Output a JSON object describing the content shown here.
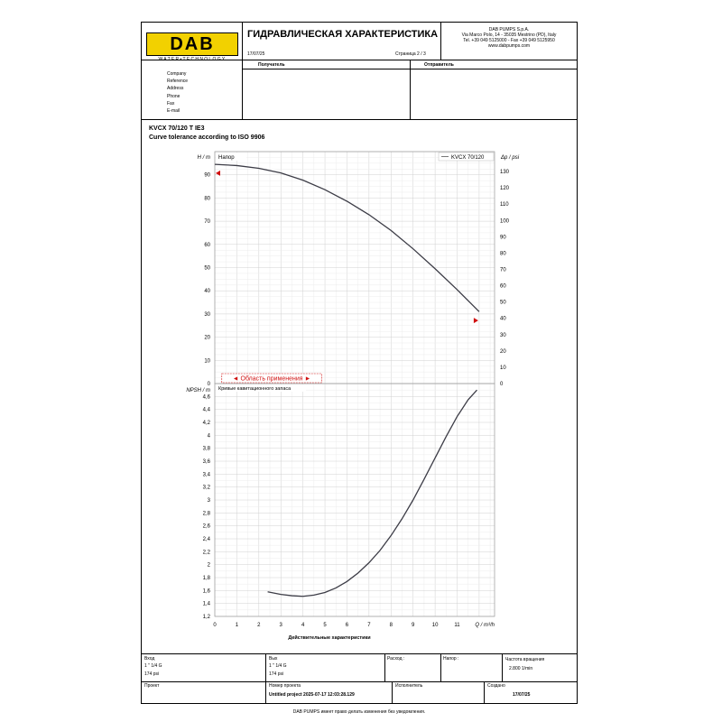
{
  "header": {
    "logo_text": "DAB",
    "logo_sub": "WATER•TECHNOLOGY",
    "title": "ГИДРАВЛИЧЕСКАЯ ХАРАКТЕРИСТИКА",
    "date": "17/07/25",
    "page": "Страница 2 / 3",
    "company": {
      "name": "DAB PUMPS S.p.A.",
      "address": "Via Marco Polo, 14 - 35035 Mestrino (PD), Italy",
      "phone": "Tel. +39 049 5125000 - Fax +39 049 5125950",
      "web": "www.dabpumps.com"
    }
  },
  "info": {
    "recipient_label": "Получатель",
    "sender_label": "Отправитель",
    "fields": [
      "Company",
      "Reference",
      "Address",
      "Phone",
      "Fax",
      "E-mail"
    ]
  },
  "product": {
    "model": "KVCX 70/120 T IE3",
    "tolerance": "Curve tolerance according to ISO 9906"
  },
  "chart_data": [
    {
      "type": "line",
      "title": "Напор",
      "ylabel_left": "H / m",
      "ylabel_right": "Δp / psi",
      "legend": "KVCX 70/120",
      "legend_position": "top-right",
      "grid": true,
      "xlim": [
        0,
        12.7
      ],
      "ylim": [
        0,
        100
      ],
      "y_ticks": [
        0,
        10,
        20,
        30,
        40,
        50,
        60,
        70,
        80,
        90
      ],
      "y_right_ticks": [
        0,
        10,
        20,
        30,
        40,
        50,
        60,
        70,
        80,
        90,
        100,
        110,
        120,
        130
      ],
      "series": [
        {
          "name": "KVCX 70/120",
          "x": [
            0,
            1,
            2,
            3,
            4,
            5,
            6,
            7,
            8,
            9,
            10,
            11,
            12
          ],
          "y": [
            94.5,
            94.0,
            92.8,
            90.8,
            87.7,
            83.6,
            78.6,
            72.8,
            66.0,
            58.1,
            49.5,
            40.5,
            31.0
          ]
        }
      ],
      "markers": [
        {
          "x": 0,
          "y": 90.7
        },
        {
          "x": 12,
          "y": 27.2
        }
      ],
      "application_range": {
        "label": "◄ Область применения ►",
        "from": 0.4,
        "to": 4.6
      }
    },
    {
      "type": "line",
      "title": "Кривые кавитационного запаса",
      "ylabel": "NPSH / m",
      "xlabel": "Действительные характеристики",
      "x_unit": "Q / m³/h",
      "grid": true,
      "xlim": [
        0,
        12.7
      ],
      "ylim": [
        1.2,
        4.8
      ],
      "x_ticks": [
        0,
        1,
        2,
        3,
        4,
        5,
        6,
        7,
        8,
        9,
        10,
        11
      ],
      "y_ticks": [
        1.2,
        1.4,
        1.6,
        1.8,
        2,
        2.2,
        2.4,
        2.6,
        2.8,
        3,
        3.2,
        3.4,
        3.6,
        3.8,
        4,
        4.2,
        4.4,
        4.6
      ],
      "y_tick_labels": [
        "1,2",
        "1,4",
        "1,6",
        "1,8",
        "2",
        "2,2",
        "2,4",
        "2,6",
        "2,8",
        "3",
        "3,2",
        "3,4",
        "3,6",
        "3,8",
        "4",
        "4,2",
        "4,4",
        "4,6"
      ],
      "series": [
        {
          "x": [
            2.4,
            3.0,
            3.5,
            4.0,
            4.5,
            5.0,
            5.5,
            6.0,
            6.5,
            7.0,
            7.5,
            8.0,
            8.5,
            9.0,
            9.5,
            10.0,
            10.5,
            11.0,
            11.5,
            11.9
          ],
          "y": [
            1.58,
            1.54,
            1.52,
            1.51,
            1.53,
            1.57,
            1.64,
            1.74,
            1.87,
            2.03,
            2.22,
            2.45,
            2.71,
            3.0,
            3.32,
            3.65,
            3.98,
            4.29,
            4.55,
            4.7
          ]
        }
      ]
    }
  ],
  "footer": {
    "inlet_label": "Вход",
    "inlet_value": "1 \" 1/4 G",
    "inlet_pressure": "174 psi",
    "outlet_label": "Вых",
    "outlet_value": "1 \" 1/4 G",
    "outlet_pressure": "174 psi",
    "flow_label": "Расход :",
    "head_label": "Напор :",
    "speed_label": "Частота вращения",
    "speed_value": "2.800 1/min",
    "project_label": "Проект",
    "project_number_label": "Номер проекта",
    "project_number_value": "Untitled project 2025-07-17 12:03:28.129",
    "executor_label": "Исполнитель",
    "created_label": "Создано",
    "created_value": "17/07/25",
    "disclaimer": "DAB PUMPS имеет право делать изменения без уведомления."
  }
}
